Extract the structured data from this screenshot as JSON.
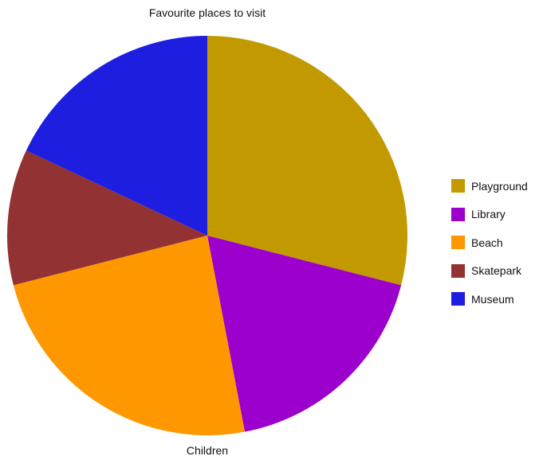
{
  "chart_data": {
    "type": "pie",
    "title": "Favourite places to visit",
    "xlabel": "Children",
    "ylabel": "",
    "legend_position": "right",
    "categories": [
      "Playground",
      "Library",
      "Beach",
      "Skatepark",
      "Museum"
    ],
    "values": [
      29,
      18,
      24,
      11,
      18
    ],
    "colors": [
      "#C29A00",
      "#9B00CC",
      "#FF9800",
      "#933232",
      "#1E1EE0"
    ]
  },
  "legend": {
    "items": [
      {
        "label": "Playground"
      },
      {
        "label": "Library"
      },
      {
        "label": "Beach"
      },
      {
        "label": "Skatepark"
      },
      {
        "label": "Museum"
      }
    ]
  }
}
